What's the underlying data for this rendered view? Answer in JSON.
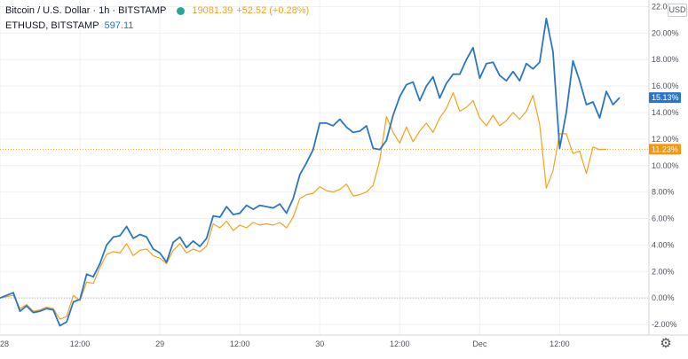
{
  "legend": {
    "title": "Bitcoin / U.S. Dollar · 1h · BITSTAMP",
    "price": "19081.39",
    "change": "+52.52 (+0.28%)",
    "eth_name": "ETHUSD, BITSTAMP",
    "eth_price": "597.11"
  },
  "price_scale": {
    "currency": "USD"
  },
  "colors": {
    "btc_line": "#2a76c6",
    "eth_line": "#f4a21c",
    "btc_badge": "#2a76c6",
    "eth_badge": "#f4960f",
    "grid": "#eef0f3",
    "axis_text": "#50535e"
  },
  "icons": {
    "settings": "gear-icon"
  },
  "chart_data": {
    "type": "line",
    "y_unit": "%",
    "ylim": [
      -2.8,
      22.5
    ],
    "y_ticks": [
      "22.00%",
      "20.00%",
      "18.00%",
      "16.00%",
      "14.00%",
      "12.00%",
      "10.00%",
      "8.00%",
      "6.00%",
      "4.00%",
      "2.00%",
      "0.00%",
      "-2.00%"
    ],
    "y_tick_values": [
      22,
      20,
      18,
      16,
      14,
      12,
      10,
      8,
      6,
      4,
      2,
      0,
      -2
    ],
    "x_range": [
      0,
      97
    ],
    "x_ticks": [
      {
        "label": "28",
        "x": 0
      },
      {
        "label": "12:00",
        "x": 12
      },
      {
        "label": "29",
        "x": 24
      },
      {
        "label": "12:00",
        "x": 36
      },
      {
        "label": "30",
        "x": 48
      },
      {
        "label": "12:00",
        "x": 60
      },
      {
        "label": "Dec",
        "x": 72
      },
      {
        "label": "12:00",
        "x": 84
      }
    ],
    "grid": true,
    "baseline": 0,
    "series": [
      {
        "name": "Bitcoin / U.S. Dollar",
        "last_label": "15.13%",
        "last_value": 15.13,
        "values": [
          0.0,
          0.2,
          0.4,
          -1.0,
          -0.6,
          -1.1,
          -1.0,
          -0.8,
          -0.9,
          -2.1,
          -1.8,
          -0.3,
          -0.1,
          1.8,
          1.6,
          2.6,
          4.0,
          4.6,
          4.7,
          5.4,
          4.5,
          4.8,
          4.6,
          3.7,
          3.4,
          2.7,
          4.2,
          4.6,
          3.8,
          4.3,
          3.9,
          4.5,
          6.2,
          6.1,
          6.9,
          6.3,
          6.4,
          7.0,
          6.7,
          7.0,
          6.9,
          6.8,
          7.1,
          6.4,
          7.5,
          9.3,
          10.2,
          11.2,
          13.2,
          13.2,
          13.0,
          13.5,
          12.9,
          12.5,
          12.6,
          13.0,
          11.3,
          11.2,
          11.9,
          13.8,
          15.2,
          16.1,
          16.3,
          14.9,
          16.0,
          16.7,
          15.1,
          16.2,
          16.9,
          16.9,
          18.0,
          18.9,
          16.6,
          17.7,
          17.8,
          16.8,
          16.4,
          17.1,
          16.4,
          17.7,
          17.3,
          17.8,
          21.1,
          18.6,
          11.3,
          14.0,
          17.9,
          16.4,
          14.6,
          14.8,
          13.6,
          15.6,
          14.6,
          15.13
        ]
      },
      {
        "name": "ETHUSD, BITSTAMP",
        "last_label": "11.23%",
        "last_value": 11.23,
        "values": [
          0.0,
          0.1,
          0.2,
          -0.8,
          -0.5,
          -1.0,
          -0.9,
          -0.7,
          -0.8,
          -1.6,
          -1.4,
          0.2,
          -0.2,
          1.2,
          1.1,
          2.3,
          3.3,
          3.5,
          3.4,
          4.1,
          3.2,
          3.6,
          3.7,
          3.2,
          3.0,
          2.6,
          3.6,
          4.1,
          3.4,
          3.7,
          3.5,
          3.9,
          5.6,
          5.3,
          5.8,
          5.1,
          5.5,
          5.3,
          5.7,
          5.5,
          5.6,
          5.5,
          5.7,
          5.3,
          6.1,
          7.5,
          7.8,
          7.9,
          8.4,
          8.1,
          8.0,
          8.2,
          8.6,
          7.7,
          7.8,
          8.0,
          8.5,
          10.4,
          13.7,
          12.5,
          11.7,
          12.9,
          11.8,
          12.6,
          13.2,
          12.5,
          13.6,
          14.3,
          15.5,
          14.1,
          14.4,
          14.9,
          13.6,
          13.0,
          13.8,
          13.0,
          13.4,
          14.0,
          13.5,
          14.1,
          15.3,
          13.1,
          8.3,
          9.6,
          12.4,
          12.4,
          10.9,
          11.1,
          9.4,
          11.4,
          11.2,
          11.23
        ]
      }
    ]
  }
}
